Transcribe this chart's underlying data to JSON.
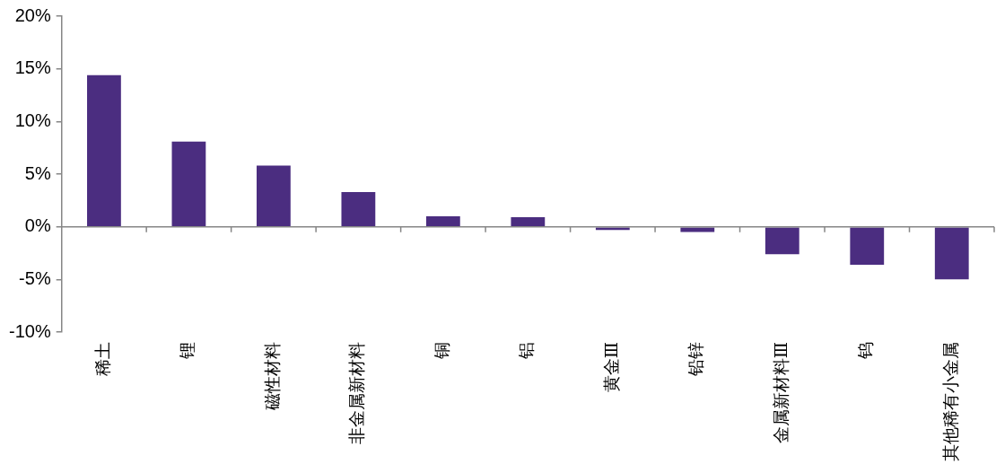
{
  "chart_data": {
    "type": "bar",
    "categories": [
      "稀土",
      "锂",
      "磁性材料",
      "非金属新材料",
      "铜",
      "铝",
      "黄金Ⅲ",
      "铅锌",
      "金属新材料Ⅲ",
      "钨",
      "其他稀有小金属"
    ],
    "values": [
      14.4,
      8.1,
      5.8,
      3.3,
      1.0,
      0.9,
      -0.3,
      -0.5,
      -2.6,
      -3.6,
      -5.0
    ],
    "color": "#4b2d80",
    "ylim": [
      -10,
      20
    ],
    "yticks": [
      {
        "value": -10,
        "label": "-10%"
      },
      {
        "value": -5,
        "label": "-5%"
      },
      {
        "value": 0,
        "label": "0%"
      },
      {
        "value": 5,
        "label": "5%"
      },
      {
        "value": 10,
        "label": "10%"
      },
      {
        "value": 15,
        "label": "15%"
      },
      {
        "value": 20,
        "label": "20%"
      }
    ]
  }
}
